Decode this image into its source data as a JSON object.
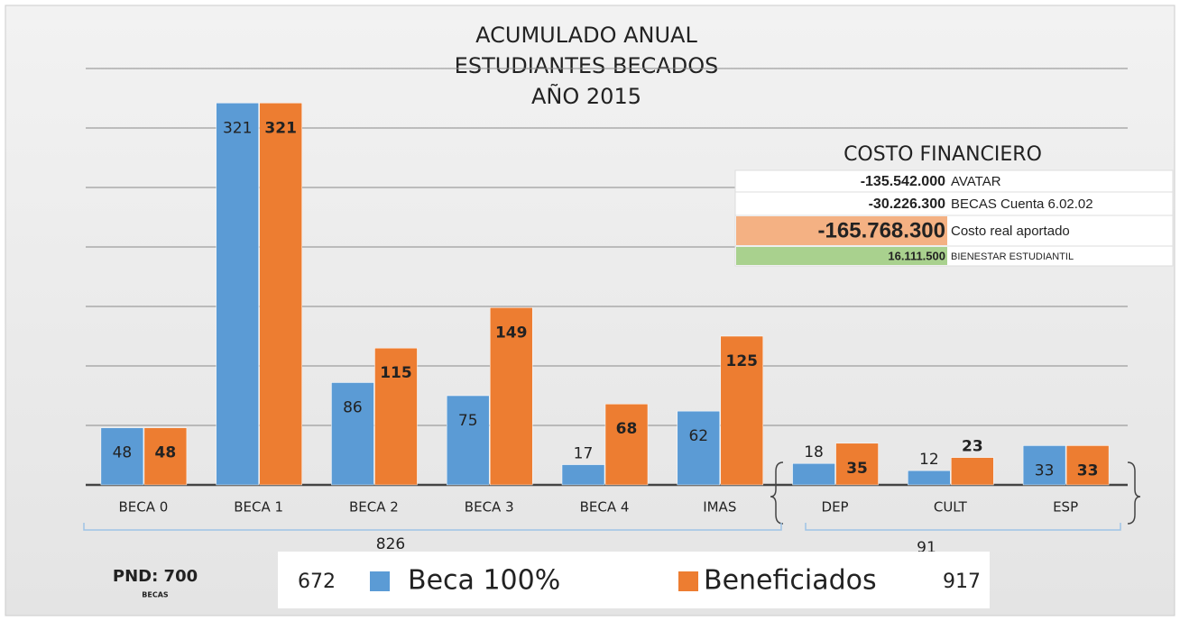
{
  "chart_data": {
    "type": "bar",
    "title": [
      "ACUMULADO ANUAL",
      "ESTUDIANTES BECADOS",
      "AÑO 2015"
    ],
    "categories": [
      "BECA 0",
      "BECA 1",
      "BECA 2",
      "BECA 3",
      "BECA 4",
      "IMAS",
      "DEP",
      "CULT",
      "ESP"
    ],
    "series": [
      {
        "name": "Beca 100%",
        "color": "#5b9bd5",
        "total": 672,
        "values": [
          48,
          321,
          86,
          75,
          17,
          62,
          18,
          12,
          33
        ]
      },
      {
        "name": "Beneficiados",
        "color": "#ed7d31",
        "total": 917,
        "values": [
          48,
          321,
          115,
          149,
          68,
          125,
          35,
          23,
          33
        ]
      }
    ],
    "ylim": [
      0,
      350
    ],
    "yticks": [
      0,
      50,
      100,
      150,
      200,
      250,
      300,
      350
    ],
    "grid": true,
    "group_totals": [
      826,
      91
    ],
    "pnd": {
      "label": "PND: 700",
      "sub": "BECAS"
    },
    "cost_table": {
      "title": "COSTO FINANCIERO",
      "rows": [
        [
          "-135.542.000",
          "AVATAR"
        ],
        [
          "-30.226.300",
          "BECAS Cuenta  6.02.02"
        ],
        [
          "-165.768.300",
          "Costo real aportado"
        ],
        [
          "16.111.500",
          "BIENESTAR ESTUDIANTIL"
        ]
      ]
    }
  }
}
